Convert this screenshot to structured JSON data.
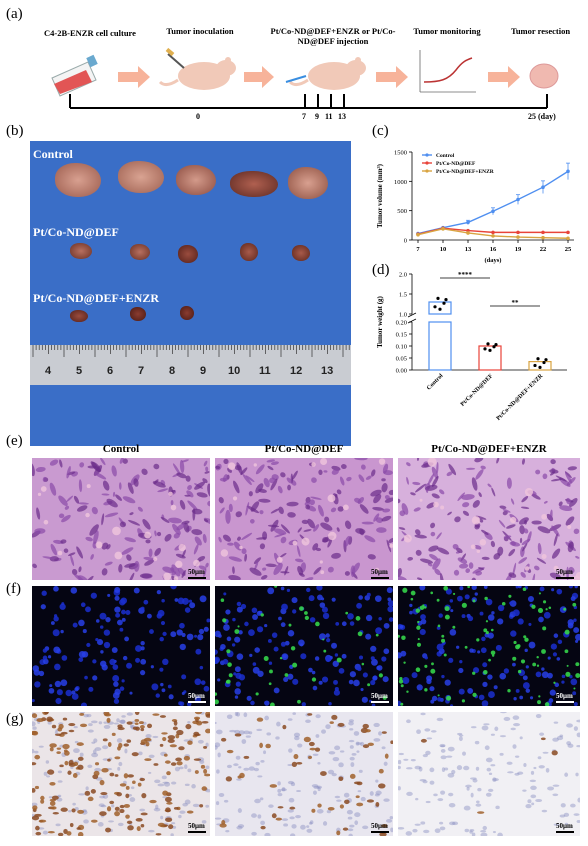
{
  "panel_labels": {
    "a": "(a)",
    "b": "(b)",
    "c": "(c)",
    "d": "(d)",
    "e": "(e)",
    "f": "(f)",
    "g": "(g)"
  },
  "timeline": {
    "steps": [
      "C4-2B-ENZR cell culture",
      "Tumor inoculation",
      "Pt/Co-ND@DEF+ENZR or Pt/Co-ND@DEF injection",
      "Tumor monitoring",
      "Tumor resection"
    ],
    "ticks": [
      "0",
      "7",
      "9",
      "11",
      "13",
      "25 (day)"
    ]
  },
  "photo": {
    "groups": [
      "Control",
      "Pt/Co-ND@DEF",
      "Pt/Co-ND@DEF+ENZR"
    ],
    "ruler_numbers": [
      "4",
      "5",
      "6",
      "7",
      "8",
      "9",
      "10",
      "11",
      "12",
      "13"
    ],
    "colors": {
      "background": "#3a6ec7",
      "ruler": "#c9ccd2"
    }
  },
  "chart_data": [
    {
      "type": "line",
      "xlabel": "(days)",
      "ylabel": "Tumor volume (mm³)",
      "x": [
        7,
        10,
        13,
        16,
        19,
        22,
        25
      ],
      "ylim": [
        0,
        1500
      ],
      "yticks": [
        0,
        500,
        1000,
        1500
      ],
      "legend_position": "top-left",
      "series": [
        {
          "name": "Control",
          "color": "#4f8ff0",
          "values": [
            110,
            210,
            300,
            490,
            690,
            900,
            1170
          ]
        },
        {
          "name": "Pt/Co-ND@DEF",
          "color": "#e8443a",
          "values": [
            100,
            200,
            160,
            130,
            130,
            130,
            130
          ]
        },
        {
          "name": "Pt/Co-ND@DEF+ENZR",
          "color": "#d9a441",
          "values": [
            90,
            190,
            120,
            70,
            50,
            40,
            30
          ]
        }
      ]
    },
    {
      "type": "bar",
      "ylabel": "Tumor weight (g)",
      "categories": [
        "Control",
        "Pt/Co-ND@DEF",
        "Pt/Co-ND@DEF+ENZR"
      ],
      "values": [
        1.3,
        0.1,
        0.035
      ],
      "colors": [
        "#4f8ff0",
        "#e8443a",
        "#d9a441"
      ],
      "broken_axis": true,
      "yticks_upper": [
        "1.0",
        "1.5",
        "2.0"
      ],
      "yticks_lower": [
        "0.00",
        "0.05",
        "0.10",
        "0.15",
        "0.20"
      ],
      "significance": [
        "****",
        "**"
      ]
    }
  ],
  "histology": {
    "columns": [
      "Control",
      "Pt/Co-ND@DEF",
      "Pt/Co-ND@DEF+ENZR"
    ],
    "scale_bar": "50μm"
  }
}
